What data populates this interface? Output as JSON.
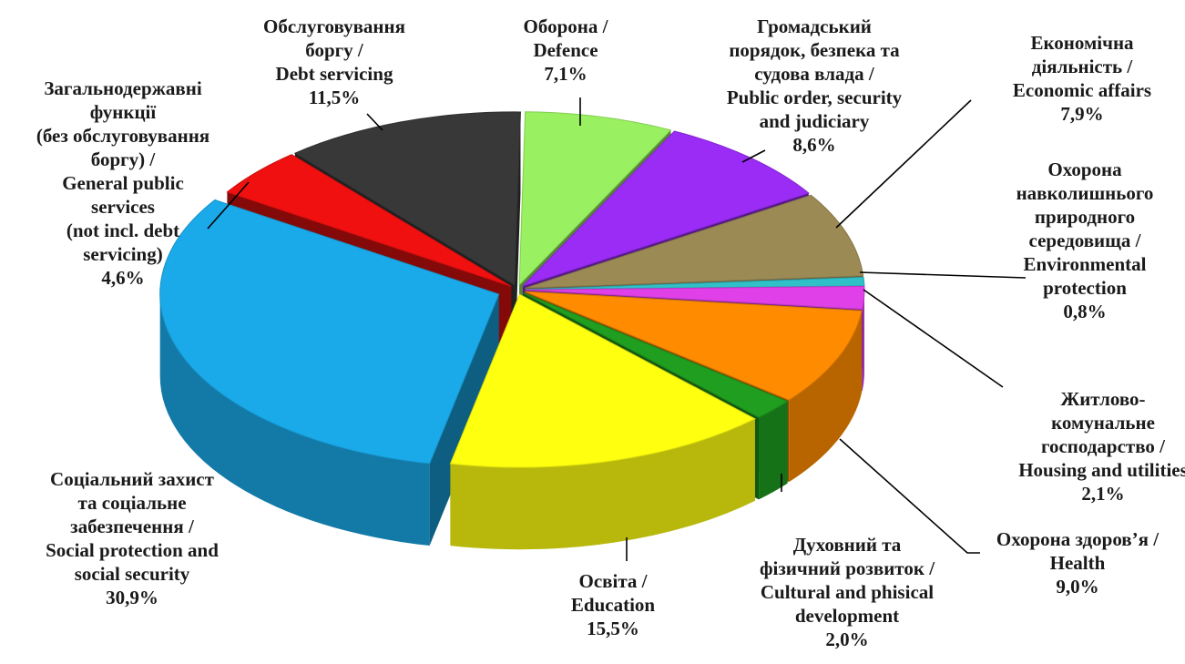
{
  "chart_data": {
    "type": "pie",
    "variant": "3d-exploded",
    "title": "",
    "slices": [
      {
        "label": [
          "Оборона /",
          "Defence"
        ],
        "value": 7.1,
        "value_text": "7,1%",
        "color": "#99f060"
      },
      {
        "label": [
          "Громадський",
          "порядок, безпека та",
          "судова влада /",
          "Public order, security",
          "and judiciary"
        ],
        "value": 8.6,
        "value_text": "8,6%",
        "color": "#9b2cf5"
      },
      {
        "label": [
          "Економічна",
          "діяльність /",
          "Economic affairs"
        ],
        "value": 7.9,
        "value_text": "7,9%",
        "color": "#9c8a55"
      },
      {
        "label": [
          "Охорона",
          "навколишнього",
          "природного",
          "середовища /",
          "Environmental",
          "protection"
        ],
        "value": 0.8,
        "value_text": "0,8%",
        "color": "#30c0c8"
      },
      {
        "label": [
          "Житлово-",
          "комунальне",
          "господарство /",
          "Housing and utilities"
        ],
        "value": 2.1,
        "value_text": "2,1%",
        "color": "#e040e8"
      },
      {
        "label": [
          "Охорона здоров’я /",
          "Health"
        ],
        "value": 9.0,
        "value_text": "9,0%",
        "color": "#ff8c00"
      },
      {
        "label": [
          "Духовний та",
          "фізичний розвиток /",
          "Cultural and phisical",
          "development"
        ],
        "value": 2.0,
        "value_text": "2,0%",
        "color": "#1f9e1f"
      },
      {
        "label": [
          "Освіта /",
          "Education"
        ],
        "value": 15.5,
        "value_text": "15,5%",
        "color": "#ffff10"
      },
      {
        "label": [
          "Соціальний захист",
          "та соціальне",
          "забезпечення /",
          "Social protection and",
          "social security"
        ],
        "value": 30.9,
        "value_text": "30,9%",
        "color": "#1aaaea"
      },
      {
        "label": [
          "Загальнодержавні",
          "функції",
          "(без обслуговування",
          "боргу) /",
          "General public",
          "services",
          "(not incl. debt",
          "servicing)"
        ],
        "value": 4.6,
        "value_text": "4,6%",
        "color": "#f01010"
      },
      {
        "label": [
          "Обслуговування",
          "боргу /",
          "Debt servicing"
        ],
        "value": 11.5,
        "value_text": "11,5%",
        "color": "#383838"
      }
    ]
  }
}
